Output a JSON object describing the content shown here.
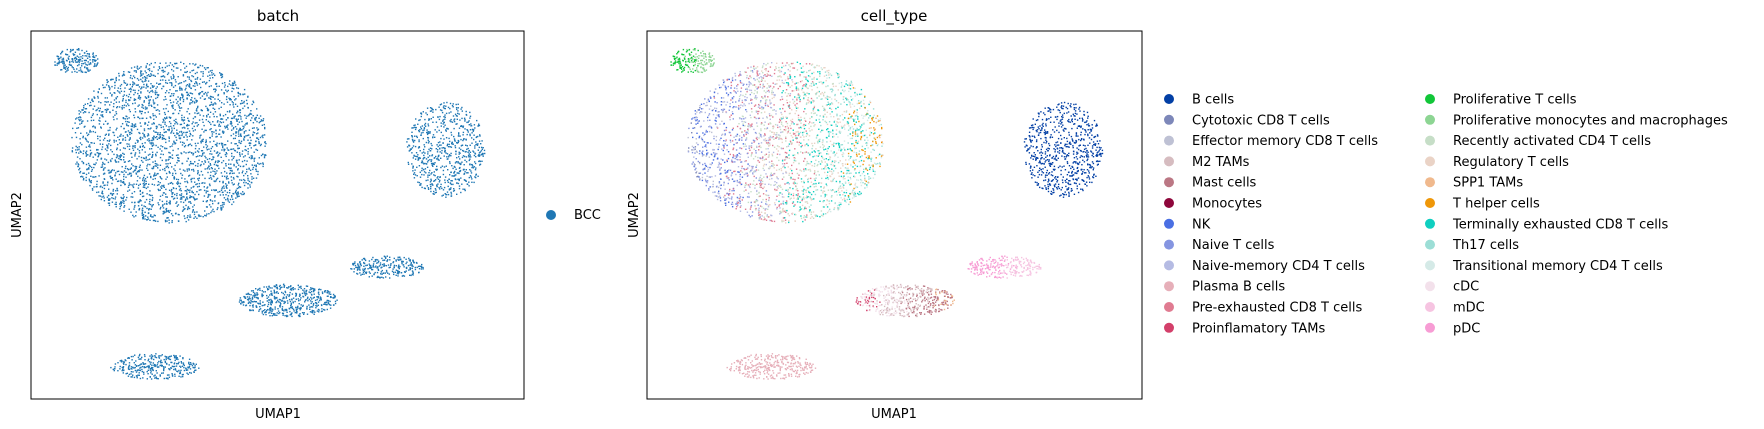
{
  "chart_data": [
    {
      "type": "scatter",
      "title": "batch",
      "xlabel": "UMAP1",
      "ylabel": "UMAP2",
      "ticks": false,
      "legend_position": "right",
      "legend": [
        {
          "label": "BCC",
          "color": "#1f77b4"
        }
      ],
      "clusters": [
        {
          "name": "large-left-cluster",
          "color": "#1f77b4",
          "cx": 0.28,
          "cy": 0.3,
          "rx": 0.2,
          "ry": 0.22,
          "n": 2600
        },
        {
          "name": "top-left-blob",
          "color": "#1f77b4",
          "cx": 0.09,
          "cy": 0.08,
          "rx": 0.045,
          "ry": 0.035,
          "n": 180
        },
        {
          "name": "right-cluster",
          "color": "#1f77b4",
          "cx": 0.84,
          "cy": 0.32,
          "rx": 0.08,
          "ry": 0.13,
          "n": 700
        },
        {
          "name": "middle-cluster",
          "color": "#1f77b4",
          "cx": 0.52,
          "cy": 0.73,
          "rx": 0.1,
          "ry": 0.045,
          "n": 500
        },
        {
          "name": "middle-right-tail",
          "color": "#1f77b4",
          "cx": 0.72,
          "cy": 0.64,
          "rx": 0.075,
          "ry": 0.03,
          "n": 260
        },
        {
          "name": "bottom-cluster",
          "color": "#1f77b4",
          "cx": 0.25,
          "cy": 0.91,
          "rx": 0.09,
          "ry": 0.035,
          "n": 320
        }
      ]
    },
    {
      "type": "scatter",
      "title": "cell_type",
      "xlabel": "UMAP1",
      "ylabel": "UMAP2",
      "ticks": false,
      "legend_position": "right",
      "legend_columns": 2,
      "legend": [
        {
          "label": "B cells",
          "color": "#023fa5"
        },
        {
          "label": "Cytotoxic CD8 T cells",
          "color": "#7d87b9"
        },
        {
          "label": "Effector memory CD8 T cells",
          "color": "#bec1d4"
        },
        {
          "label": "M2 TAMs",
          "color": "#d6bcc0"
        },
        {
          "label": "Mast cells",
          "color": "#bb7784"
        },
        {
          "label": "Monocytes",
          "color": "#8e063b"
        },
        {
          "label": "NK",
          "color": "#4a6fe3"
        },
        {
          "label": "Naive T cells",
          "color": "#8595e1"
        },
        {
          "label": "Naive-memory CD4 T cells",
          "color": "#b5bbe3"
        },
        {
          "label": "Plasma B cells",
          "color": "#e6afb9"
        },
        {
          "label": "Pre-exhausted CD8 T cells",
          "color": "#e07b91"
        },
        {
          "label": "Proinflamatory TAMs",
          "color": "#d33f6a"
        },
        {
          "label": "Proliferative T cells",
          "color": "#11c638"
        },
        {
          "label": "Proliferative monocytes and macrophages",
          "color": "#8dd593"
        },
        {
          "label": "Recently activated CD4 T cells",
          "color": "#c6dec7"
        },
        {
          "label": "Regulatory T cells",
          "color": "#ead3c6"
        },
        {
          "label": "SPP1 TAMs",
          "color": "#f0b98d"
        },
        {
          "label": "T helper cells",
          "color": "#ef9708"
        },
        {
          "label": "Terminally exhausted CD8 T cells",
          "color": "#0fcfc0"
        },
        {
          "label": "Th17 cells",
          "color": "#9cded6"
        },
        {
          "label": "Transitional memory CD4 T cells",
          "color": "#d5eae7"
        },
        {
          "label": "cDC",
          "color": "#f3e1eb"
        },
        {
          "label": "mDC",
          "color": "#f6c4e1"
        },
        {
          "label": "pDC",
          "color": "#f79cd4"
        }
      ],
      "clusters": [
        {
          "name": "tcell-cluster",
          "colors": [
            "#7d87b9",
            "#bec1d4",
            "#4a6fe3",
            "#8595e1",
            "#b5bbe3",
            "#e07b91",
            "#c6dec7",
            "#ead3c6",
            "#0fcfc0",
            "#9cded6",
            "#d5eae7",
            "#ef9708",
            "#f0b98d"
          ],
          "cx": 0.28,
          "cy": 0.3,
          "rx": 0.2,
          "ry": 0.22,
          "n": 2600
        },
        {
          "name": "proliferative-blob",
          "colors": [
            "#11c638",
            "#8dd593"
          ],
          "cx": 0.09,
          "cy": 0.08,
          "rx": 0.045,
          "ry": 0.035,
          "n": 180
        },
        {
          "name": "bcell-cluster",
          "colors": [
            "#023fa5"
          ],
          "cx": 0.84,
          "cy": 0.32,
          "rx": 0.08,
          "ry": 0.13,
          "n": 700
        },
        {
          "name": "myeloid-cluster",
          "colors": [
            "#d33f6a",
            "#f3e1eb",
            "#d6bcc0",
            "#bb7784",
            "#f0b98d"
          ],
          "cx": 0.52,
          "cy": 0.73,
          "rx": 0.1,
          "ry": 0.045,
          "n": 500
        },
        {
          "name": "pdc-tail",
          "colors": [
            "#f79cd4",
            "#f6c4e1"
          ],
          "cx": 0.72,
          "cy": 0.64,
          "rx": 0.075,
          "ry": 0.03,
          "n": 260
        },
        {
          "name": "plasma-cluster",
          "colors": [
            "#e6afb9"
          ],
          "cx": 0.25,
          "cy": 0.91,
          "rx": 0.09,
          "ry": 0.035,
          "n": 320
        }
      ]
    }
  ]
}
